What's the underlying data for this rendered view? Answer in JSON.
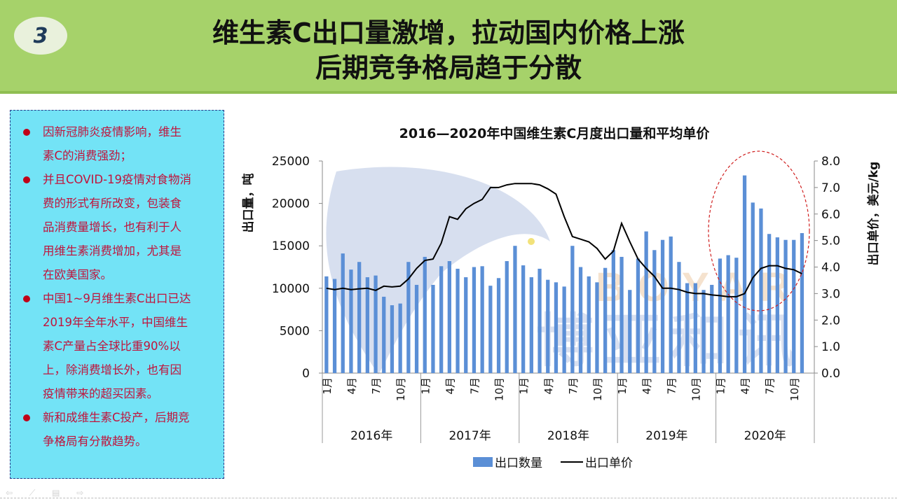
{
  "slide": {
    "number": "3",
    "title_lines": [
      "维生素C出口量激增，拉动国内价格上涨",
      "后期竞争格局趋于分散"
    ]
  },
  "sidebar": {
    "bullets": [
      [
        "因新冠肺炎疫情影响，维生",
        "素C的消费强劲；"
      ],
      [
        "并且COVID-19疫情对食物消",
        "费的形式有所改变，包装食",
        "品消费量增长，也有利于人",
        "用维生素消费增加，尤其是",
        "在欧美国家。"
      ],
      [
        "中国1~9月维生素C出口已达",
        "2019年全年水平，中国维生",
        "素C产量占全球比重90%以",
        "上，除消费增长外，也有因",
        "疫情带来的超买因素。"
      ],
      [
        "新和成维生素C投产，后期竞",
        "争格局有分散趋势。"
      ]
    ]
  },
  "watermark": {
    "latin": "BOYAR",
    "cn": "博亚和讯"
  },
  "chart_data": {
    "type": "bar+line",
    "title": "2016—2020年中国维生素C月度出口量和平均单价",
    "ylabel": "出口量，吨",
    "y2label": "出口单价，美元/kg",
    "ylim": [
      0,
      25000
    ],
    "y2lim": [
      0,
      8
    ],
    "yticks": [
      "25000",
      "20000",
      "15000",
      "10000",
      "5000",
      "0"
    ],
    "y2ticks": [
      "8.0",
      "7.0",
      "6.0",
      "5.0",
      "4.0",
      "3.0",
      "2.0",
      "1.0",
      "0.0"
    ],
    "month_labels": [
      "1月",
      "4月",
      "7月",
      "10月"
    ],
    "years": [
      "2016年",
      "2017年",
      "2018年",
      "2019年",
      "2020年"
    ],
    "legend": [
      "出口数量",
      "出口单价"
    ],
    "series": [
      {
        "name": "出口数量",
        "type": "bar",
        "color": "#5b8fd6",
        "values": [
          11400,
          11100,
          14100,
          12200,
          13100,
          11300,
          11500,
          9000,
          8000,
          8200,
          13100,
          10400,
          13700,
          10400,
          12600,
          13200,
          12300,
          11300,
          12500,
          12600,
          10300,
          11200,
          13200,
          15000,
          12700,
          11300,
          12300,
          11000,
          10700,
          10200,
          15000,
          12500,
          11400,
          10700,
          12400,
          14500,
          13700,
          9800,
          13500,
          16700,
          14500,
          15700,
          16100,
          13100,
          10600,
          10600,
          9800,
          10400,
          13500,
          13900,
          13600,
          23300,
          20100,
          19400,
          16400,
          16000,
          15700,
          15700,
          16500
        ]
      },
      {
        "name": "出口单价",
        "type": "line",
        "color": "#000000",
        "values": [
          3.2,
          3.15,
          3.2,
          3.15,
          3.18,
          3.2,
          3.12,
          3.28,
          3.25,
          3.28,
          3.55,
          3.95,
          4.25,
          4.3,
          4.9,
          5.9,
          5.8,
          6.2,
          6.4,
          6.55,
          7.0,
          7.0,
          7.1,
          7.15,
          7.15,
          7.15,
          7.1,
          6.95,
          6.75,
          5.9,
          5.15,
          5.05,
          4.95,
          4.7,
          4.3,
          4.6,
          5.65,
          4.95,
          4.3,
          3.95,
          3.65,
          3.2,
          3.2,
          3.15,
          3.05,
          3.0,
          3.0,
          2.95,
          2.92,
          2.88,
          2.88,
          3.0,
          3.6,
          3.95,
          4.05,
          4.05,
          3.95,
          3.9,
          3.75
        ]
      }
    ]
  }
}
